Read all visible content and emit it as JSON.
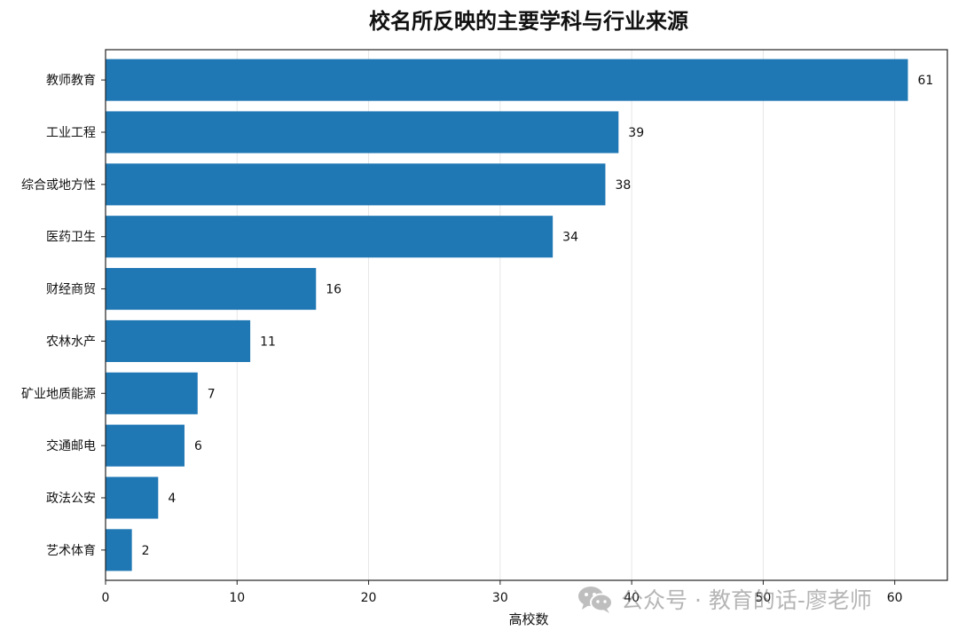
{
  "chart_data": {
    "type": "bar",
    "orientation": "horizontal",
    "title": "校名所反映的主要学科与行业来源",
    "xlabel": "高校数",
    "ylabel": "",
    "xlim": [
      0,
      64
    ],
    "xticks": [
      0,
      10,
      20,
      30,
      40,
      50,
      60
    ],
    "categories": [
      "教师教育",
      "工业工程",
      "综合或地方性",
      "医药卫生",
      "财经商贸",
      "农林水产",
      "矿业地质能源",
      "交通邮电",
      "政法公安",
      "艺术体育"
    ],
    "values": [
      61,
      39,
      38,
      34,
      16,
      11,
      7,
      6,
      4,
      2
    ],
    "bar_color": "#1f77b4",
    "grid": "x",
    "data_labels": true
  },
  "watermark": {
    "text": "公众号 · 教育的话-廖老师",
    "icon": "wechat-icon"
  }
}
